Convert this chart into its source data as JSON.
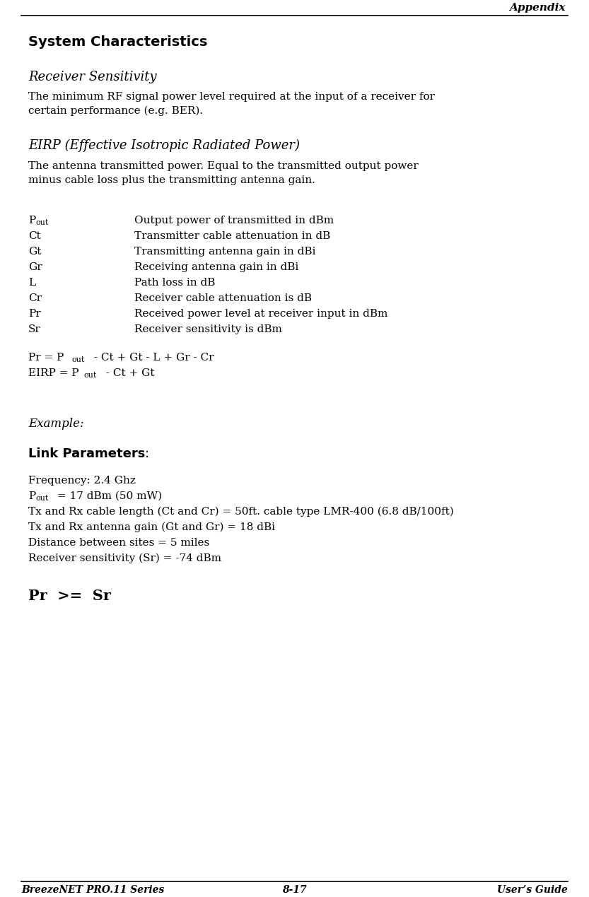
{
  "fig_width": 8.33,
  "fig_height": 12.69,
  "dpi": 100,
  "bg_color": "#ffffff",
  "header_text": "Appendix",
  "footer_left": "BreezeNET PRO.11 Series",
  "footer_center": "8-17",
  "footer_right": "User’s Guide",
  "section_title": "System Characteristics",
  "subsection1": "Receiver Sensitivity",
  "para1": "The minimum RF signal power level required at the input of a receiver for\ncertain performance (e.g. BER).",
  "subsection2": "EIRP (Effective Isotropic Radiated Power)",
  "para2": "The antenna transmitted power. Equal to the transmitted output power\nminus cable loss plus the transmitting antenna gain.",
  "table_rows": [
    [
      "P_out",
      "Output power of transmitted in dBm"
    ],
    [
      "Ct",
      "Transmitter cable attenuation in dB"
    ],
    [
      "Gt",
      "Transmitting antenna gain in dBi"
    ],
    [
      "Gr",
      "Receiving antenna gain in dBi"
    ],
    [
      "L",
      "Path loss in dB"
    ],
    [
      "Cr",
      "Receiver cable attenuation is dB"
    ],
    [
      "Pr",
      "Received power level at receiver input in dBm"
    ],
    [
      "Sr",
      "Receiver sensitivity is dBm"
    ]
  ],
  "example_label": "Example:",
  "link_params_label": "Link Parameters",
  "link_params_lines": [
    "Frequency: 2.4 Ghz",
    "P_out = 17 dBm (50 mW)",
    "Tx and Rx cable length (Ct and Cr) = 50ft. cable type LMR-400 (6.8 dB/100ft)",
    "Tx and Rx antenna gain (Gt and Gr) = 18 dBi",
    "Distance between sites = 5 miles",
    "Receiver sensitivity (Sr) = -74 dBm"
  ],
  "final_formula": "Pr  >=  Sr"
}
